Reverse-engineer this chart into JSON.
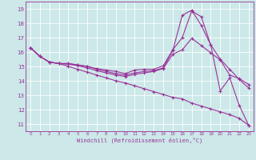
{
  "xlabel": "Windchill (Refroidissement éolien,°C)",
  "bg_color": "#cce8e8",
  "line_color": "#993399",
  "grid_color": "#ffffff",
  "ylim": [
    10.5,
    19.5
  ],
  "xlim": [
    -0.5,
    23.5
  ],
  "yticks": [
    11,
    12,
    13,
    14,
    15,
    16,
    17,
    18,
    19
  ],
  "xticks": [
    0,
    1,
    2,
    3,
    4,
    5,
    6,
    7,
    8,
    9,
    10,
    11,
    12,
    13,
    14,
    15,
    16,
    17,
    18,
    19,
    20,
    21,
    22,
    23
  ],
  "lines": [
    [
      16.3,
      15.7,
      15.3,
      15.2,
      15.2,
      15.1,
      15.0,
      14.85,
      14.75,
      14.65,
      14.5,
      14.75,
      14.8,
      14.8,
      15.05,
      16.15,
      17.0,
      18.85,
      18.45,
      16.5,
      13.3,
      14.2,
      12.3,
      10.9
    ],
    [
      16.3,
      15.7,
      15.3,
      15.2,
      15.2,
      15.1,
      15.0,
      14.8,
      14.65,
      14.5,
      14.4,
      14.55,
      14.65,
      14.7,
      14.9,
      16.1,
      18.55,
      18.9,
      17.85,
      16.5,
      15.5,
      14.8,
      14.1,
      13.5
    ],
    [
      16.3,
      15.7,
      15.3,
      15.2,
      15.15,
      15.05,
      14.9,
      14.7,
      14.55,
      14.4,
      14.3,
      14.45,
      14.55,
      14.65,
      14.85,
      15.85,
      16.15,
      16.95,
      16.45,
      15.95,
      15.45,
      14.4,
      14.15,
      13.75
    ],
    [
      16.3,
      15.7,
      15.3,
      15.2,
      15.0,
      14.8,
      14.6,
      14.4,
      14.2,
      14.0,
      13.85,
      13.65,
      13.45,
      13.25,
      13.05,
      12.85,
      12.75,
      12.45,
      12.25,
      12.05,
      11.85,
      11.65,
      11.4,
      10.9
    ]
  ]
}
